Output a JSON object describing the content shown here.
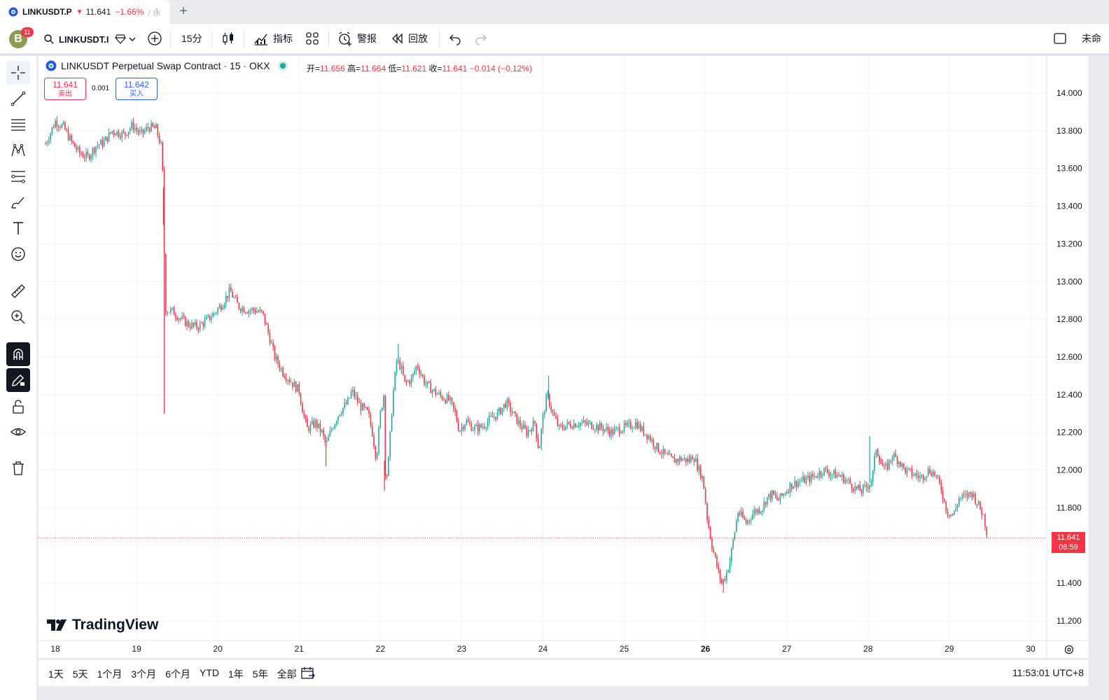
{
  "tab": {
    "symbol": "LINKUSDT.P",
    "price": "11.641",
    "change": "−1.66%",
    "separator": "/ 永"
  },
  "toolbar": {
    "avatar_letter": "B",
    "notification_count": "11",
    "search_symbol": "LINKUSDT.I",
    "interval": "15分",
    "indicators": "指标",
    "alerts": "警报",
    "replay": "回放",
    "unnamed": "未命"
  },
  "legend": {
    "title": "LINKUSDT Perpetual Swap Contract · 15 · OKX",
    "open_label": "开=",
    "open": "11.656",
    "high_label": "高=",
    "high": "11.664",
    "low_label": "低=",
    "low": "11.621",
    "close_label": "收=",
    "close": "11.641",
    "change": "−0.014 (−0.12%)"
  },
  "trade": {
    "sell_price": "11.641",
    "sell_label": "卖出",
    "spread": "0.001",
    "buy_price": "11.642",
    "buy_label": "买入"
  },
  "watermark": "TradingView",
  "last_price": {
    "value": "11.641",
    "countdown": "06:59"
  },
  "ranges": [
    "1天",
    "5天",
    "1个月",
    "3个月",
    "6个月",
    "YTD",
    "1年",
    "5年",
    "全部"
  ],
  "time_display": "11:53:01 UTC+8",
  "colors": {
    "up": "#26a69a",
    "down": "#f23645",
    "grid": "#f0f3fa",
    "price_line": "#f23645"
  },
  "chart_data": {
    "type": "candlestick",
    "title": "LINKUSDT Perpetual Swap Contract · 15 · OKX",
    "x_ticks": [
      "18",
      "19",
      "20",
      "21",
      "22",
      "23",
      "24",
      "25",
      "26",
      "27",
      "28",
      "29",
      "30"
    ],
    "y_ticks": [
      "14.000",
      "13.800",
      "13.600",
      "13.400",
      "13.200",
      "13.000",
      "12.800",
      "12.600",
      "12.400",
      "12.200",
      "12.000",
      "11.800",
      "11.400",
      "11.200"
    ],
    "ylim": [
      11.15,
      14.05
    ],
    "xlim": [
      17.88,
      30.05
    ],
    "grid": true,
    "last_price": 11.641,
    "path": [
      [
        17.88,
        13.73
      ],
      [
        18.0,
        13.85
      ],
      [
        18.1,
        13.82
      ],
      [
        18.2,
        13.74
      ],
      [
        18.3,
        13.68
      ],
      [
        18.4,
        13.66
      ],
      [
        18.5,
        13.72
      ],
      [
        18.6,
        13.74
      ],
      [
        18.7,
        13.8
      ],
      [
        18.85,
        13.78
      ],
      [
        18.95,
        13.83
      ],
      [
        19.05,
        13.78
      ],
      [
        19.15,
        13.82
      ],
      [
        19.24,
        13.81
      ],
      [
        19.3,
        13.72
      ],
      [
        19.33,
        13.5
      ],
      [
        19.35,
        12.8
      ],
      [
        19.36,
        12.85
      ],
      [
        19.45,
        12.84
      ],
      [
        19.55,
        12.8
      ],
      [
        19.65,
        12.77
      ],
      [
        19.75,
        12.76
      ],
      [
        19.85,
        12.79
      ],
      [
        19.95,
        12.83
      ],
      [
        20.05,
        12.88
      ],
      [
        20.15,
        12.95
      ],
      [
        20.25,
        12.87
      ],
      [
        20.35,
        12.85
      ],
      [
        20.45,
        12.85
      ],
      [
        20.55,
        12.83
      ],
      [
        20.6,
        12.76
      ],
      [
        20.7,
        12.6
      ],
      [
        20.8,
        12.52
      ],
      [
        20.9,
        12.47
      ],
      [
        21.0,
        12.42
      ],
      [
        21.05,
        12.3
      ],
      [
        21.1,
        12.22
      ],
      [
        21.2,
        12.25
      ],
      [
        21.28,
        12.2
      ],
      [
        21.33,
        12.13
      ],
      [
        21.4,
        12.22
      ],
      [
        21.5,
        12.31
      ],
      [
        21.6,
        12.36
      ],
      [
        21.65,
        12.42
      ],
      [
        21.75,
        12.34
      ],
      [
        21.85,
        12.3
      ],
      [
        21.9,
        12.2
      ],
      [
        21.95,
        12.06
      ],
      [
        22.0,
        12.3
      ],
      [
        22.04,
        12.4
      ],
      [
        22.05,
        12.05
      ],
      [
        22.07,
        11.94
      ],
      [
        22.1,
        12.05
      ],
      [
        22.15,
        12.38
      ],
      [
        22.2,
        12.58
      ],
      [
        22.25,
        12.55
      ],
      [
        22.3,
        12.46
      ],
      [
        22.38,
        12.48
      ],
      [
        22.45,
        12.56
      ],
      [
        22.55,
        12.46
      ],
      [
        22.65,
        12.42
      ],
      [
        22.75,
        12.39
      ],
      [
        22.85,
        12.37
      ],
      [
        22.92,
        12.3
      ],
      [
        22.97,
        12.21
      ],
      [
        23.05,
        12.26
      ],
      [
        23.15,
        12.22
      ],
      [
        23.25,
        12.23
      ],
      [
        23.35,
        12.27
      ],
      [
        23.45,
        12.3
      ],
      [
        23.55,
        12.36
      ],
      [
        23.6,
        12.32
      ],
      [
        23.7,
        12.25
      ],
      [
        23.8,
        12.2
      ],
      [
        23.9,
        12.25
      ],
      [
        23.95,
        12.1
      ],
      [
        24.0,
        12.28
      ],
      [
        24.05,
        12.4
      ],
      [
        24.12,
        12.3
      ],
      [
        24.2,
        12.22
      ],
      [
        24.3,
        12.24
      ],
      [
        24.45,
        12.25
      ],
      [
        24.6,
        12.24
      ],
      [
        24.75,
        12.22
      ],
      [
        24.85,
        12.2
      ],
      [
        24.95,
        12.22
      ],
      [
        25.05,
        12.23
      ],
      [
        25.15,
        12.25
      ],
      [
        25.2,
        12.22
      ],
      [
        25.3,
        12.18
      ],
      [
        25.4,
        12.12
      ],
      [
        25.5,
        12.08
      ],
      [
        25.6,
        12.05
      ],
      [
        25.7,
        12.06
      ],
      [
        25.8,
        12.05
      ],
      [
        25.85,
        12.08
      ],
      [
        25.9,
        12.02
      ],
      [
        25.97,
        11.95
      ],
      [
        26.02,
        11.75
      ],
      [
        26.08,
        11.6
      ],
      [
        26.15,
        11.47
      ],
      [
        26.2,
        11.4
      ],
      [
        26.25,
        11.44
      ],
      [
        26.3,
        11.52
      ],
      [
        26.35,
        11.65
      ],
      [
        26.4,
        11.78
      ],
      [
        26.5,
        11.72
      ],
      [
        26.6,
        11.78
      ],
      [
        26.7,
        11.8
      ],
      [
        26.75,
        11.85
      ],
      [
        26.82,
        11.87
      ],
      [
        26.9,
        11.84
      ],
      [
        26.97,
        11.88
      ],
      [
        27.05,
        11.92
      ],
      [
        27.15,
        11.94
      ],
      [
        27.25,
        11.95
      ],
      [
        27.35,
        11.97
      ],
      [
        27.45,
        12.0
      ],
      [
        27.55,
        11.98
      ],
      [
        27.65,
        11.97
      ],
      [
        27.75,
        11.94
      ],
      [
        27.85,
        11.9
      ],
      [
        27.92,
        11.89
      ],
      [
        28.0,
        11.92
      ],
      [
        28.05,
        11.95
      ],
      [
        28.1,
        12.12
      ],
      [
        28.15,
        12.05
      ],
      [
        28.2,
        12.0
      ],
      [
        28.25,
        12.03
      ],
      [
        28.3,
        12.08
      ],
      [
        28.38,
        12.05
      ],
      [
        28.45,
        12.0
      ],
      [
        28.55,
        11.98
      ],
      [
        28.65,
        11.96
      ],
      [
        28.75,
        12.0
      ],
      [
        28.82,
        11.98
      ],
      [
        28.9,
        11.9
      ],
      [
        28.97,
        11.78
      ],
      [
        29.05,
        11.76
      ],
      [
        29.12,
        11.85
      ],
      [
        29.2,
        11.86
      ],
      [
        29.28,
        11.88
      ],
      [
        29.35,
        11.82
      ],
      [
        29.42,
        11.76
      ],
      [
        29.47,
        11.65
      ]
    ],
    "spikes": [
      [
        19.33,
        13.3
      ],
      [
        19.34,
        12.3
      ],
      [
        21.33,
        12.02
      ],
      [
        22.05,
        11.89
      ],
      [
        22.22,
        12.67
      ],
      [
        24.07,
        12.5
      ],
      [
        26.22,
        11.35
      ],
      [
        28.02,
        12.18
      ]
    ],
    "series": [
      {
        "name": "LINKUSDT.P",
        "last": 11.641
      }
    ]
  }
}
